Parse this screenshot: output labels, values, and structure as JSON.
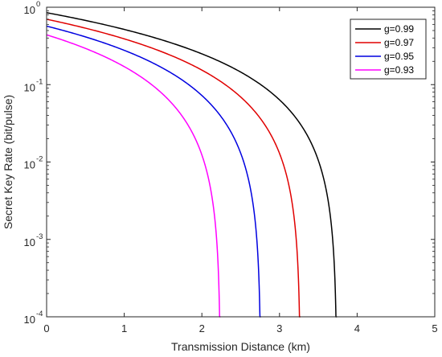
{
  "chart_data": {
    "type": "line",
    "title": "",
    "xlabel": "Transmission Distance (km)",
    "ylabel": "Secret Key Rate (bit/pulse)",
    "x_scale": "linear",
    "y_scale": "log",
    "xlim": [
      0,
      5
    ],
    "ylim": [
      0.0001,
      1
    ],
    "x_ticks": [
      "0",
      "1",
      "2",
      "3",
      "4",
      "5"
    ],
    "y_ticks": [
      {
        "base": "10",
        "exp": "-4"
      },
      {
        "base": "10",
        "exp": "-3"
      },
      {
        "base": "10",
        "exp": "-2"
      },
      {
        "base": "10",
        "exp": "-1"
      },
      {
        "base": "10",
        "exp": "0"
      }
    ],
    "grid": false,
    "legend_position": "top-right",
    "series": [
      {
        "name": "g=0.99",
        "color": "#000000",
        "y0": 0.85,
        "cutoff_km": 3.74
      },
      {
        "name": "g=0.97",
        "color": "#e00000",
        "y0": 0.7,
        "cutoff_km": 3.27
      },
      {
        "name": "g=0.95",
        "color": "#0000e0",
        "y0": 0.57,
        "cutoff_km": 2.76
      },
      {
        "name": "g=0.93",
        "color": "#ff00ff",
        "y0": 0.44,
        "cutoff_km": 2.24
      }
    ]
  }
}
